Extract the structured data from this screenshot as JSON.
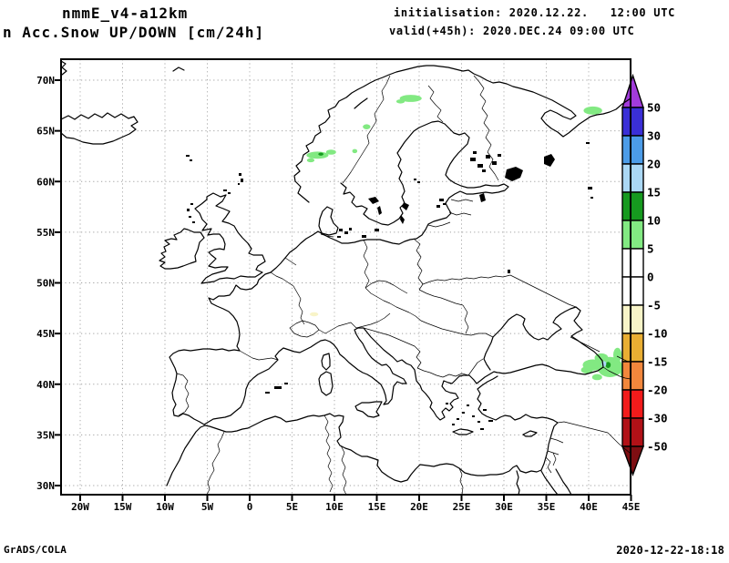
{
  "header": {
    "model": "nmmE_v4-a12km",
    "product": "n Acc.Snow UP/DOWN [cm/24h]",
    "init_line": "initialisation: 2020.12.22.   12:00 UTC",
    "valid_line": "valid(+45h): 2020.DEC.24 09:00 UTC"
  },
  "footer": {
    "credit": "GrADS/COLA",
    "timestamp": "2020-12-22-18:18"
  },
  "axes": {
    "lon_ticks": [
      {
        "value": -20,
        "label": "20W"
      },
      {
        "value": -15,
        "label": "15W"
      },
      {
        "value": -10,
        "label": "10W"
      },
      {
        "value": -5,
        "label": "5W"
      },
      {
        "value": 0,
        "label": "0"
      },
      {
        "value": 5,
        "label": "5E"
      },
      {
        "value": 10,
        "label": "10E"
      },
      {
        "value": 15,
        "label": "15E"
      },
      {
        "value": 20,
        "label": "20E"
      },
      {
        "value": 25,
        "label": "25E"
      },
      {
        "value": 30,
        "label": "30E"
      },
      {
        "value": 35,
        "label": "35E"
      },
      {
        "value": 40,
        "label": "40E"
      },
      {
        "value": 45,
        "label": "45E"
      }
    ],
    "lat_ticks": [
      {
        "value": 70,
        "label": "70N"
      },
      {
        "value": 65,
        "label": "65N"
      },
      {
        "value": 60,
        "label": "60N"
      },
      {
        "value": 55,
        "label": "55N"
      },
      {
        "value": 50,
        "label": "50N"
      },
      {
        "value": 45,
        "label": "45N"
      },
      {
        "value": 40,
        "label": "40N"
      },
      {
        "value": 35,
        "label": "35N"
      },
      {
        "value": 30,
        "label": "30N"
      }
    ]
  },
  "colorbar": {
    "boundary_labels": [
      "50",
      "30",
      "20",
      "15",
      "10",
      "5",
      "0",
      "-5",
      "-10",
      "-15",
      "-20",
      "-30",
      "-50"
    ],
    "band_colors_top_to_bottom": [
      "#3a2fd7",
      "#4c9ce8",
      "#abd8f5",
      "#169a1f",
      "#82e982",
      "#ffffff",
      "#ffffff",
      "#f8f4c8",
      "#e9ae33",
      "#f2873c",
      "#f21b1b",
      "#b11117"
    ],
    "triangle_top_color": "#a23bdc",
    "triangle_bottom_color": "#7e0e12"
  },
  "palette": {
    "5-10": "#82e982",
    "10-15": "#169a1f",
    "15-20": "#abd8f5",
    "-10--5": "#f8f4c8"
  },
  "snow_areas": [
    {
      "region": "central-norway-coast",
      "lon": 8.0,
      "lat": 62.6,
      "rx_deg": 1.3,
      "ry_deg": 0.35,
      "level": "5-10"
    },
    {
      "region": "central-norway-coast",
      "lon": 9.6,
      "lat": 62.9,
      "rx_deg": 0.6,
      "ry_deg": 0.25,
      "level": "5-10"
    },
    {
      "region": "central-norway-coast",
      "lon": 7.2,
      "lat": 62.1,
      "rx_deg": 0.45,
      "ry_deg": 0.2,
      "level": "5-10"
    },
    {
      "region": "central-norway-coast",
      "lon": 8.4,
      "lat": 62.7,
      "rx_deg": 0.3,
      "ry_deg": 0.15,
      "level": "10-15"
    },
    {
      "region": "central-norway-inland",
      "lon": 13.8,
      "lat": 65.4,
      "rx_deg": 0.45,
      "ry_deg": 0.25,
      "level": "5-10"
    },
    {
      "region": "central-norway-inland",
      "lon": 12.4,
      "lat": 63.0,
      "rx_deg": 0.3,
      "ry_deg": 0.2,
      "level": "5-10"
    },
    {
      "region": "north-sweden",
      "lon": 19.0,
      "lat": 68.2,
      "rx_deg": 1.3,
      "ry_deg": 0.35,
      "level": "5-10"
    },
    {
      "region": "north-sweden",
      "lon": 17.8,
      "lat": 67.9,
      "rx_deg": 0.5,
      "ry_deg": 0.2,
      "level": "5-10"
    },
    {
      "region": "northeast-russia-edge",
      "lon": 40.5,
      "lat": 67.0,
      "rx_deg": 1.1,
      "ry_deg": 0.4,
      "level": "5-10"
    },
    {
      "region": "caucasus",
      "lon": 40.5,
      "lat": 41.9,
      "rx_deg": 1.2,
      "ry_deg": 0.55,
      "level": "5-10"
    },
    {
      "region": "caucasus",
      "lon": 42.5,
      "lat": 41.7,
      "rx_deg": 1.5,
      "ry_deg": 1.0,
      "level": "5-10"
    },
    {
      "region": "caucasus",
      "lon": 41.5,
      "lat": 42.6,
      "rx_deg": 0.8,
      "ry_deg": 0.45,
      "level": "5-10"
    },
    {
      "region": "caucasus",
      "lon": 39.8,
      "lat": 41.4,
      "rx_deg": 0.7,
      "ry_deg": 0.35,
      "level": "5-10"
    },
    {
      "region": "caucasus",
      "lon": 43.4,
      "lat": 42.9,
      "rx_deg": 0.5,
      "ry_deg": 0.7,
      "level": "5-10"
    },
    {
      "region": "caucasus",
      "lon": 44.3,
      "lat": 41.3,
      "rx_deg": 0.6,
      "ry_deg": 0.9,
      "level": "5-10"
    },
    {
      "region": "caucasus",
      "lon": 41.0,
      "lat": 40.7,
      "rx_deg": 0.6,
      "ry_deg": 0.3,
      "level": "5-10"
    },
    {
      "region": "caucasus",
      "lon": 42.3,
      "lat": 41.9,
      "rx_deg": 0.3,
      "ry_deg": 0.3,
      "level": "10-15"
    },
    {
      "region": "caucasus",
      "lon": 41.8,
      "lat": 42.0,
      "rx_deg": 0.28,
      "ry_deg": 0.28,
      "level": "15-20"
    },
    {
      "region": "alps",
      "lon": 7.6,
      "lat": 46.9,
      "rx_deg": 0.5,
      "ry_deg": 0.2,
      "level": "-10--5"
    }
  ],
  "chart_data": {
    "type": "map",
    "title": "nmmE_v4-a12km  Acc.Snow UP/DOWN [cm/24h]",
    "xlabel_ticks": [
      "20W",
      "15W",
      "10W",
      "5W",
      "0",
      "5E",
      "10E",
      "15E",
      "20E",
      "25E",
      "30E",
      "35E",
      "40E",
      "45E"
    ],
    "ylabel_ticks": [
      "70N",
      "65N",
      "60N",
      "55N",
      "50N",
      "45N",
      "40N",
      "35N",
      "30N"
    ],
    "colorbar_levels": [
      50,
      30,
      20,
      15,
      10,
      5,
      0,
      -5,
      -10,
      -15,
      -20,
      -30,
      -50
    ],
    "grid": "dotted",
    "legend_position": "right"
  }
}
